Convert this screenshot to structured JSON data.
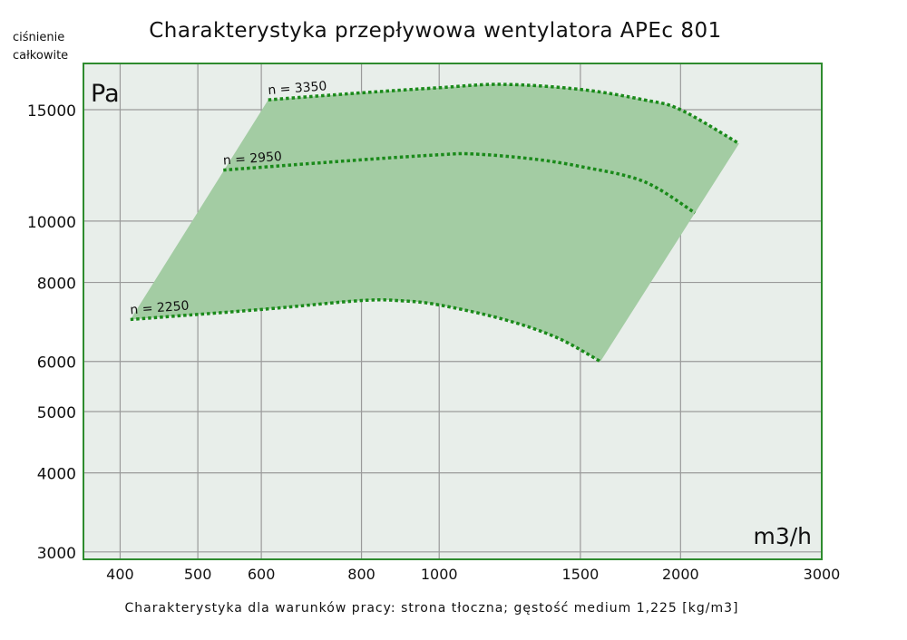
{
  "chart_data": {
    "type": "area",
    "title": "Charakterystyka przepływowa wentylatora APEc 801",
    "subtitle": "Charakterystyka dla warunków pracy: strona tłoczna; gęstość medium 1,225 [kg/m3]",
    "ylabel_line1": "ciśnienie",
    "ylabel_line2": "całkowite",
    "y_unit": "Pa",
    "x_unit": "m3/h",
    "x_scale": "log",
    "y_scale": "log",
    "xlim": [
      360,
      3000
    ],
    "ylim": [
      2920,
      17750
    ],
    "x_ticks": [
      400,
      500,
      600,
      800,
      1000,
      1500,
      2000,
      3000
    ],
    "y_ticks": [
      3000,
      4000,
      5000,
      6000,
      8000,
      10000,
      15000
    ],
    "grid": true,
    "colors": {
      "fill": "#a3cca3",
      "line": "#1a8a1a",
      "frame": "#2e8b2e",
      "plot_bg": "#e8eeea",
      "grid": "#9a9a9a"
    },
    "series": [
      {
        "name": "n = 3350",
        "points": [
          [
            612,
            15550
          ],
          [
            800,
            15950
          ],
          [
            1000,
            16250
          ],
          [
            1200,
            16450
          ],
          [
            1500,
            16150
          ],
          [
            1800,
            15550
          ],
          [
            2000,
            15000
          ],
          [
            2366,
            13260
          ]
        ]
      },
      {
        "name": "n = 2950",
        "points": [
          [
            538,
            12040
          ],
          [
            800,
            12500
          ],
          [
            1000,
            12730
          ],
          [
            1100,
            12770
          ],
          [
            1300,
            12550
          ],
          [
            1500,
            12200
          ],
          [
            1800,
            11550
          ],
          [
            2085,
            10300
          ]
        ]
      },
      {
        "name": "n = 2250",
        "points": [
          [
            412,
            6990
          ],
          [
            600,
            7250
          ],
          [
            800,
            7490
          ],
          [
            900,
            7480
          ],
          [
            1000,
            7370
          ],
          [
            1200,
            7000
          ],
          [
            1400,
            6550
          ],
          [
            1589,
            6000
          ]
        ]
      }
    ]
  }
}
